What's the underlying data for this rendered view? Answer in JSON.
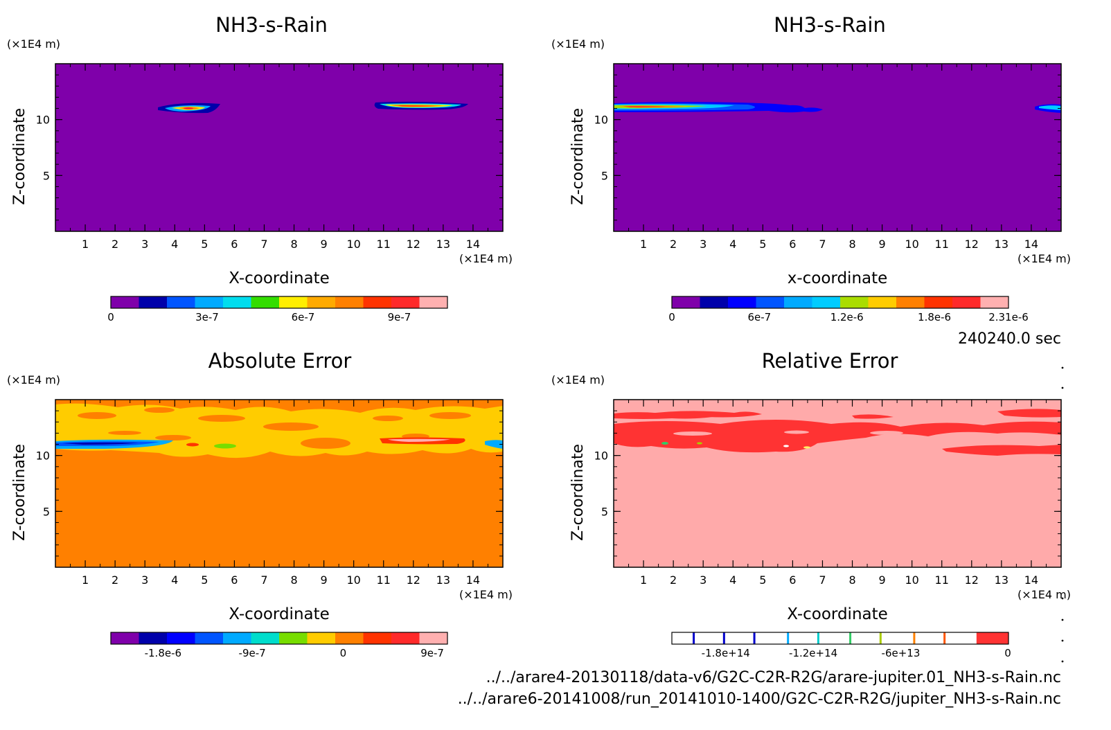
{
  "page": {
    "time_label": "240240.0 sec",
    "files": [
      "../../arare4-20130118/data-v6/G2C-C2R-R2G/arare-jupiter.01_NH3-s-Rain.nc",
      "../../arare6-20141008/run_20141010-1400/G2C-C2R-R2G/jupiter_NH3-s-Rain.nc"
    ]
  },
  "chart_data": [
    {
      "type": "heatmap",
      "title": "NH3-s-Rain",
      "xlabel": "X-coordinate",
      "ylabel": "Z-coordinate",
      "x_unit": "(×1E4 m)",
      "y_unit": "(×1E4 m)",
      "xlim": [
        0,
        15
      ],
      "ylim": [
        0,
        15
      ],
      "x_ticks": [
        1,
        2,
        3,
        4,
        5,
        6,
        7,
        8,
        9,
        10,
        11,
        12,
        13,
        14
      ],
      "y_ticks": [
        5,
        10
      ],
      "background_color": "#7f00aa",
      "colorbar": {
        "colors": [
          "#7f00aa",
          "#0000aa",
          "#0055ff",
          "#00aaff",
          "#00ddee",
          "#33dd00",
          "#ffee00",
          "#ffaa00",
          "#ff8000",
          "#ff3300",
          "#ff2a2a",
          "#ffb0b0"
        ],
        "tick_labels": [
          "0",
          "3e-7",
          "6e-7",
          "9e-7"
        ],
        "tick_fractions": [
          0,
          0.286,
          0.571,
          0.857
        ]
      },
      "features": [
        {
          "x": [
            3.4,
            5.6
          ],
          "z": [
            10.6,
            11.3
          ],
          "peak": "orange"
        },
        {
          "x": [
            10.7,
            13.8
          ],
          "z": [
            10.9,
            11.4
          ],
          "peak": "red"
        }
      ]
    },
    {
      "type": "heatmap",
      "title": "NH3-s-Rain",
      "xlabel": "x-coordinate",
      "ylabel": "Z-coordinate",
      "x_unit": "(×1E4 m)",
      "y_unit": "(×1E4 m)",
      "xlim": [
        0,
        15
      ],
      "ylim": [
        0,
        15
      ],
      "x_ticks": [
        1,
        2,
        3,
        4,
        5,
        6,
        7,
        8,
        9,
        10,
        11,
        12,
        13,
        14
      ],
      "y_ticks": [
        5,
        10
      ],
      "background_color": "#7f00aa",
      "colorbar": {
        "colors": [
          "#7f00aa",
          "#0000aa",
          "#0000ff",
          "#0055ff",
          "#00aaff",
          "#00ccff",
          "#aadd00",
          "#ffcc00",
          "#ff8000",
          "#ff3300",
          "#ff2a2a",
          "#ffb0b0"
        ],
        "tick_labels": [
          "0",
          "6e-7",
          "1.2e-6",
          "1.8e-6",
          "2.31e-6"
        ],
        "tick_fractions": [
          0,
          0.26,
          0.52,
          0.78,
          1.0
        ]
      },
      "features": [
        {
          "x": [
            0,
            7.0
          ],
          "z": [
            10.4,
            11.3
          ],
          "peak": "orange"
        },
        {
          "x": [
            14.2,
            15
          ],
          "z": [
            10.4,
            11.0
          ],
          "peak": "blue"
        }
      ]
    },
    {
      "type": "heatmap",
      "title": "Absolute Error",
      "xlabel": "X-coordinate",
      "ylabel": "Z-coordinate",
      "x_unit": "(×1E4 m)",
      "y_unit": "(×1E4 m)",
      "xlim": [
        0,
        15
      ],
      "ylim": [
        0,
        15
      ],
      "x_ticks": [
        1,
        2,
        3,
        4,
        5,
        6,
        7,
        8,
        9,
        10,
        11,
        12,
        13,
        14
      ],
      "y_ticks": [
        5,
        10
      ],
      "background_color": "#ff8000",
      "colorbar": {
        "colors": [
          "#7f00aa",
          "#0000aa",
          "#0000ff",
          "#0055ff",
          "#00aaff",
          "#00ddcc",
          "#77dd00",
          "#ffcc00",
          "#ff8000",
          "#ff3300",
          "#ff2a2a",
          "#ffb0b0"
        ],
        "tick_labels": [
          "-1.8e-6",
          "-9e-7",
          "0",
          "9e-7"
        ],
        "tick_fractions": [
          0.155,
          0.42,
          0.69,
          0.955
        ]
      },
      "features": [
        {
          "x": [
            0,
            15
          ],
          "z": [
            10.2,
            15
          ],
          "band": "yellow"
        },
        {
          "x": [
            0,
            4.3
          ],
          "z": [
            10.7,
            11.2
          ],
          "peak": "blue"
        },
        {
          "x": [
            10.8,
            13.5
          ],
          "z": [
            10.9,
            11.3
          ],
          "peak": "red"
        }
      ]
    },
    {
      "type": "heatmap",
      "title": "Relative Error",
      "xlabel": "X-coordinate",
      "ylabel": "Z-coordinate",
      "x_unit": "(×1E4 m)",
      "y_unit": "(×1E4 m)",
      "xlim": [
        0,
        15
      ],
      "ylim": [
        0,
        15
      ],
      "x_ticks": [
        1,
        2,
        3,
        4,
        5,
        6,
        7,
        8,
        9,
        10,
        11,
        12,
        13,
        14
      ],
      "y_ticks": [
        5,
        10
      ],
      "background_color": "#ffaaaa",
      "colorbar": {
        "colors": [
          "#ffffff",
          "#ff3333"
        ],
        "split_fraction": 0.905,
        "line_colors": [
          "#0000cc",
          "#0000cc",
          "#0000cc",
          "#00aaff",
          "#00cccc",
          "#33cc66",
          "#aacc00",
          "#ff8000",
          "#ff5500"
        ],
        "line_fractions": [
          0.065,
          0.155,
          0.245,
          0.345,
          0.435,
          0.53,
          0.62,
          0.72,
          0.81
        ],
        "tick_labels": [
          "-1.8e+14",
          "-1.2e+14",
          "-6e+13",
          "0"
        ],
        "tick_fractions": [
          0.16,
          0.42,
          0.68,
          0.998
        ]
      },
      "features": [
        {
          "x": [
            0,
            15
          ],
          "z": [
            9.9,
            15
          ],
          "band": "red"
        }
      ]
    }
  ]
}
